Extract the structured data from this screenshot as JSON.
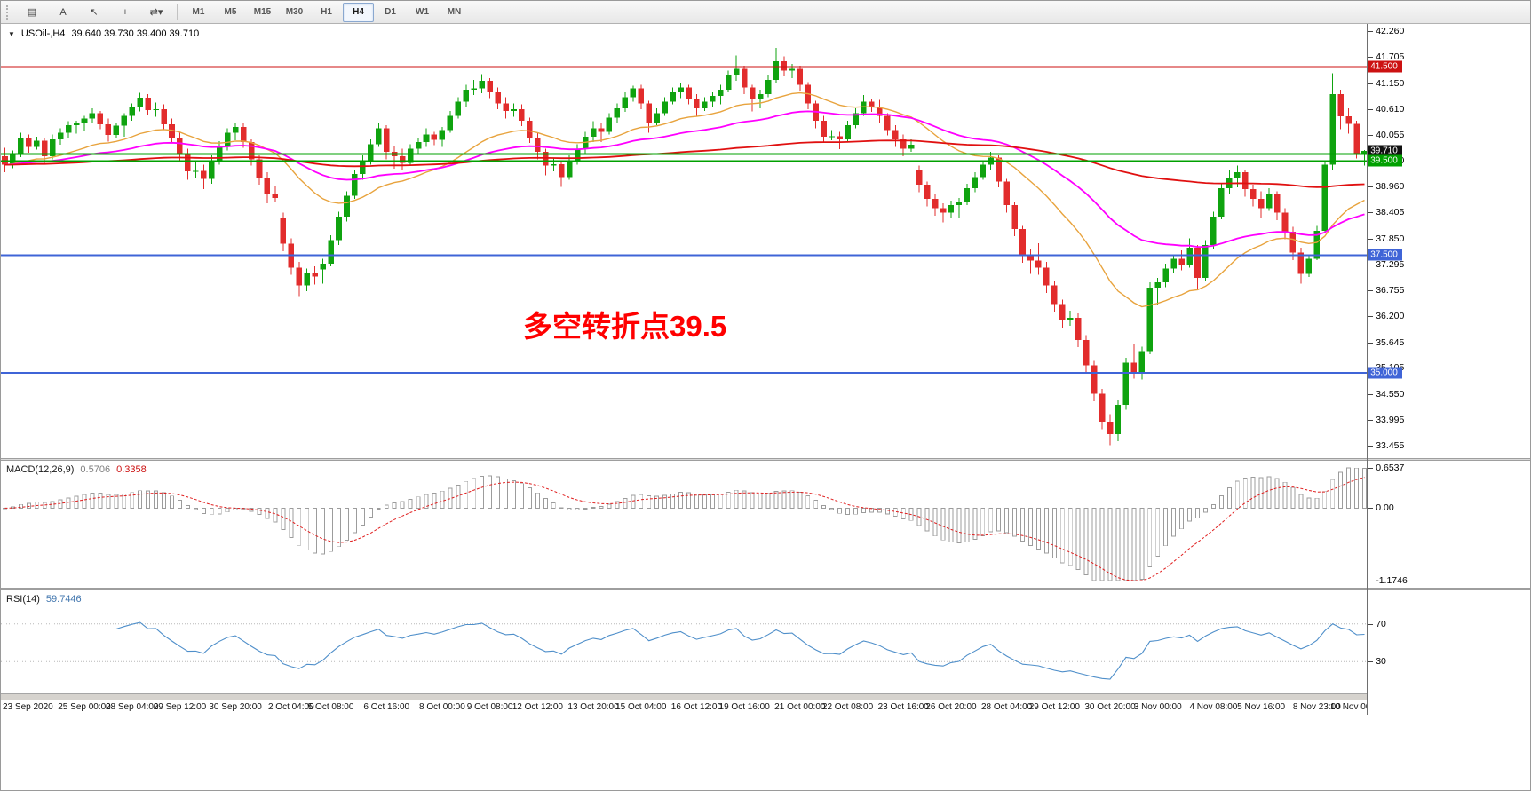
{
  "toolbar": {
    "tools": [
      {
        "name": "charts-grid-icon",
        "glyph": "▤"
      },
      {
        "name": "text-annotation-icon",
        "glyph": "A"
      },
      {
        "name": "cursor-pointer-icon",
        "glyph": "↖"
      },
      {
        "name": "crosshair-icon",
        "glyph": "+"
      },
      {
        "name": "timeframe-cycle-icon",
        "glyph": "⇄▾"
      }
    ],
    "timeframes": [
      "M1",
      "M5",
      "M15",
      "M30",
      "H1",
      "H4",
      "D1",
      "W1",
      "MN"
    ],
    "active_timeframe": "H4"
  },
  "chart": {
    "header": {
      "collapse_glyph": "▼",
      "symbol": "USOil-,H4",
      "ohlc": "39.640 39.730 39.400 39.710"
    }
  },
  "annotation": {
    "text": "多空转折点39.5",
    "color": "#ff0000"
  },
  "macd": {
    "header": {
      "label": "MACD(12,26,9)",
      "value_main": "0.5706",
      "value_signal": "0.3358"
    }
  },
  "rsi": {
    "header": {
      "label": "RSI(14)",
      "value": "59.7446"
    }
  },
  "chart_data": {
    "type": "candlestick",
    "symbol": "USOil",
    "timeframe": "H4",
    "price_range": [
      33.455,
      42.26
    ],
    "price_axis_ticks": [
      "42.260",
      "41.705",
      "41.150",
      "40.610",
      "40.055",
      "39.500",
      "38.960",
      "38.405",
      "37.850",
      "37.295",
      "36.755",
      "36.200",
      "35.645",
      "35.105",
      "34.550",
      "33.995",
      "33.455"
    ],
    "hlines": [
      {
        "price": 41.5,
        "color": "#cc1111",
        "width": 2
      },
      {
        "price": 39.65,
        "color": "#00a000",
        "width": 2
      },
      {
        "price": 39.5,
        "color": "#00a000",
        "width": 2
      },
      {
        "price": 37.5,
        "color": "#3f64d7",
        "width": 2
      },
      {
        "price": 35.0,
        "color": "#3f64d7",
        "width": 2
      }
    ],
    "badges": [
      {
        "price": 41.5,
        "label": "41.500",
        "color": "#cc1111"
      },
      {
        "price": 39.71,
        "label": "39.710",
        "color": "#111111"
      },
      {
        "price": 39.5,
        "label": "39.500",
        "color": "#00a000"
      },
      {
        "price": 37.5,
        "label": "37.500",
        "color": "#3f64d7"
      },
      {
        "price": 35.0,
        "label": "35.000",
        "color": "#3f64d7"
      }
    ],
    "moving_averages": [
      {
        "period": 24,
        "color": "#e8a33d",
        "width": 1.4
      },
      {
        "period": 52,
        "color": "#ff00ff",
        "width": 1.8
      },
      {
        "period": 200,
        "color": "#e01010",
        "width": 1.8
      }
    ],
    "macd": {
      "fast": 12,
      "slow": 26,
      "signal": 9,
      "range": [
        -1.1746,
        0.6537
      ],
      "axis_labels": [
        "0.6537",
        "0.00",
        "-1.1746"
      ]
    },
    "rsi": {
      "period": 14,
      "levels": [
        70,
        30
      ],
      "axis_labels": [
        "70",
        "30"
      ]
    },
    "x_tick_labels": [
      [
        0,
        "23 Sep 2020"
      ],
      [
        10,
        "25 Sep 00:00"
      ],
      [
        16,
        "28 Sep 04:00"
      ],
      [
        22,
        "29 Sep 12:00"
      ],
      [
        29,
        "30 Sep 20:00"
      ],
      [
        36,
        "2 Oct 04:00"
      ],
      [
        41,
        "5 Oct 08:00"
      ],
      [
        48,
        "6 Oct 16:00"
      ],
      [
        55,
        "8 Oct 00:00"
      ],
      [
        61,
        "9 Oct 08:00"
      ],
      [
        67,
        "12 Oct 12:00"
      ],
      [
        74,
        "13 Oct 20:00"
      ],
      [
        80,
        "15 Oct 04:00"
      ],
      [
        87,
        "16 Oct 12:00"
      ],
      [
        93,
        "19 Oct 16:00"
      ],
      [
        100,
        "21 Oct 00:00"
      ],
      [
        106,
        "22 Oct 08:00"
      ],
      [
        113,
        "23 Oct 16:00"
      ],
      [
        119,
        "26 Oct 20:00"
      ],
      [
        126,
        "28 Oct 04:00"
      ],
      [
        132,
        "29 Oct 12:00"
      ],
      [
        139,
        "30 Oct 20:00"
      ],
      [
        145,
        "3 Nov 00:00"
      ],
      [
        152,
        "4 Nov 08:00"
      ],
      [
        158,
        "5 Nov 16:00"
      ],
      [
        165,
        "8 Nov 23:00"
      ],
      [
        170,
        "10 Nov 00:00"
      ]
    ],
    "candles_ohlc": [
      [
        39.6,
        39.78,
        39.26,
        39.42
      ],
      [
        39.42,
        39.72,
        39.35,
        39.65
      ],
      [
        39.65,
        40.1,
        39.58,
        40.0
      ],
      [
        40.0,
        40.06,
        39.68,
        39.8
      ],
      [
        39.8,
        40.02,
        39.74,
        39.93
      ],
      [
        39.93,
        40.0,
        39.45,
        39.6
      ],
      [
        39.6,
        40.06,
        39.54,
        39.96
      ],
      [
        39.96,
        40.2,
        39.85,
        40.1
      ],
      [
        40.1,
        40.35,
        40.0,
        40.26
      ],
      [
        40.26,
        40.36,
        40.08,
        40.31
      ],
      [
        40.31,
        40.46,
        40.14,
        40.4
      ],
      [
        40.4,
        40.62,
        40.3,
        40.52
      ],
      [
        40.52,
        40.56,
        40.18,
        40.28
      ],
      [
        40.28,
        40.4,
        39.91,
        40.05
      ],
      [
        40.05,
        40.3,
        39.98,
        40.25
      ],
      [
        40.25,
        40.52,
        40.02,
        40.46
      ],
      [
        40.46,
        40.72,
        40.36,
        40.66
      ],
      [
        40.66,
        40.95,
        40.55,
        40.85
      ],
      [
        40.85,
        40.92,
        40.48,
        40.58
      ],
      [
        40.58,
        40.74,
        40.44,
        40.6
      ],
      [
        40.6,
        40.7,
        40.18,
        40.28
      ],
      [
        40.28,
        40.4,
        39.88,
        39.98
      ],
      [
        39.98,
        40.1,
        39.52,
        39.64
      ],
      [
        39.64,
        39.76,
        39.1,
        39.28
      ],
      [
        39.28,
        39.5,
        39.14,
        39.29
      ],
      [
        39.29,
        39.42,
        38.9,
        39.12
      ],
      [
        39.12,
        39.62,
        39.02,
        39.52
      ],
      [
        39.52,
        39.92,
        39.42,
        39.82
      ],
      [
        39.82,
        40.2,
        39.72,
        40.1
      ],
      [
        40.1,
        40.31,
        39.94,
        40.22
      ],
      [
        40.22,
        40.3,
        39.78,
        39.9
      ],
      [
        39.9,
        39.96,
        39.4,
        39.54
      ],
      [
        39.54,
        39.62,
        39.0,
        39.14
      ],
      [
        39.14,
        39.26,
        38.6,
        38.8
      ],
      [
        38.8,
        38.96,
        38.64,
        38.72
      ],
      [
        38.3,
        38.4,
        37.58,
        37.74
      ],
      [
        37.74,
        37.86,
        37.08,
        37.24
      ],
      [
        37.24,
        37.36,
        36.63,
        36.86
      ],
      [
        36.86,
        37.22,
        36.74,
        37.12
      ],
      [
        37.12,
        37.26,
        36.88,
        37.05
      ],
      [
        37.2,
        37.42,
        36.9,
        37.32
      ],
      [
        37.32,
        37.92,
        37.26,
        37.82
      ],
      [
        37.82,
        38.42,
        37.72,
        38.32
      ],
      [
        38.32,
        38.86,
        38.22,
        38.76
      ],
      [
        38.76,
        39.3,
        38.7,
        39.22
      ],
      [
        39.22,
        39.62,
        39.1,
        39.52
      ],
      [
        39.52,
        39.96,
        39.42,
        39.86
      ],
      [
        39.86,
        40.3,
        39.8,
        40.2
      ],
      [
        40.2,
        40.26,
        39.54,
        39.7
      ],
      [
        39.7,
        39.82,
        39.34,
        39.6
      ],
      [
        39.6,
        39.76,
        39.3,
        39.46
      ],
      [
        39.46,
        39.86,
        39.4,
        39.76
      ],
      [
        39.76,
        40.0,
        39.64,
        39.9
      ],
      [
        39.9,
        40.2,
        39.8,
        40.06
      ],
      [
        40.06,
        40.12,
        39.84,
        39.95
      ],
      [
        39.95,
        40.22,
        39.8,
        40.16
      ],
      [
        40.16,
        40.56,
        40.1,
        40.46
      ],
      [
        40.46,
        40.86,
        40.4,
        40.76
      ],
      [
        40.76,
        41.12,
        40.66,
        41.02
      ],
      [
        41.02,
        41.22,
        40.9,
        41.04
      ],
      [
        41.04,
        41.35,
        40.94,
        41.2
      ],
      [
        41.2,
        41.26,
        40.84,
        40.96
      ],
      [
        40.96,
        41.06,
        40.6,
        40.72
      ],
      [
        40.72,
        40.86,
        40.4,
        40.56
      ],
      [
        40.56,
        40.72,
        40.44,
        40.6
      ],
      [
        40.6,
        40.7,
        40.24,
        40.36
      ],
      [
        40.36,
        40.42,
        39.88,
        40.0
      ],
      [
        40.0,
        40.1,
        39.54,
        39.7
      ],
      [
        39.7,
        39.76,
        39.2,
        39.4
      ],
      [
        39.4,
        39.56,
        39.28,
        39.43
      ],
      [
        39.43,
        39.52,
        38.95,
        39.16
      ],
      [
        39.16,
        39.62,
        39.1,
        39.52
      ],
      [
        39.52,
        39.86,
        39.42,
        39.76
      ],
      [
        39.76,
        40.12,
        39.66,
        40.02
      ],
      [
        40.02,
        40.35,
        39.9,
        40.2
      ],
      [
        40.2,
        40.32,
        39.9,
        40.12
      ],
      [
        40.12,
        40.52,
        40.06,
        40.42
      ],
      [
        40.42,
        40.72,
        40.32,
        40.62
      ],
      [
        40.62,
        40.96,
        40.54,
        40.86
      ],
      [
        40.86,
        41.1,
        40.76,
        41.04
      ],
      [
        41.04,
        41.12,
        40.6,
        40.72
      ],
      [
        40.72,
        40.78,
        40.1,
        40.32
      ],
      [
        40.32,
        40.62,
        40.26,
        40.52
      ],
      [
        40.52,
        40.86,
        40.46,
        40.76
      ],
      [
        40.76,
        41.06,
        40.7,
        40.96
      ],
      [
        40.96,
        41.15,
        40.84,
        41.06
      ],
      [
        41.06,
        41.12,
        40.7,
        40.82
      ],
      [
        40.82,
        40.92,
        40.45,
        40.62
      ],
      [
        40.62,
        40.86,
        40.56,
        40.76
      ],
      [
        40.76,
        40.96,
        40.66,
        40.88
      ],
      [
        40.88,
        41.12,
        40.7,
        41.02
      ],
      [
        41.02,
        41.42,
        40.96,
        41.32
      ],
      [
        41.32,
        41.74,
        41.2,
        41.46
      ],
      [
        41.46,
        41.52,
        40.92,
        41.06
      ],
      [
        41.06,
        41.12,
        40.55,
        40.83
      ],
      [
        40.83,
        41.02,
        40.62,
        40.92
      ],
      [
        40.92,
        41.32,
        40.86,
        41.22
      ],
      [
        41.22,
        41.9,
        41.16,
        41.62
      ],
      [
        41.62,
        41.72,
        41.3,
        41.42
      ],
      [
        41.42,
        41.56,
        41.26,
        41.46
      ],
      [
        41.46,
        41.52,
        41.0,
        41.12
      ],
      [
        41.12,
        41.18,
        40.6,
        40.72
      ],
      [
        40.72,
        40.78,
        40.2,
        40.36
      ],
      [
        40.36,
        40.46,
        39.9,
        40.02
      ],
      [
        40.02,
        40.16,
        39.94,
        40.03
      ],
      [
        40.03,
        40.12,
        39.75,
        39.96
      ],
      [
        39.96,
        40.36,
        39.9,
        40.26
      ],
      [
        40.26,
        40.62,
        40.2,
        40.52
      ],
      [
        40.52,
        40.9,
        40.46,
        40.76
      ],
      [
        40.76,
        40.82,
        40.54,
        40.64
      ],
      [
        40.64,
        40.8,
        40.3,
        40.46
      ],
      [
        40.46,
        40.52,
        40.04,
        40.16
      ],
      [
        40.16,
        40.26,
        39.8,
        39.96
      ],
      [
        39.96,
        40.06,
        39.6,
        39.76
      ],
      [
        39.76,
        39.96,
        39.7,
        39.85
      ],
      [
        39.3,
        39.4,
        38.84,
        39.0
      ],
      [
        39.0,
        39.06,
        38.54,
        38.7
      ],
      [
        38.7,
        38.8,
        38.34,
        38.5
      ],
      [
        38.5,
        38.6,
        38.2,
        38.4
      ],
      [
        38.4,
        38.66,
        38.3,
        38.56
      ],
      [
        38.56,
        38.72,
        38.3,
        38.62
      ],
      [
        38.62,
        39.02,
        38.56,
        38.92
      ],
      [
        38.92,
        39.26,
        38.84,
        39.16
      ],
      [
        39.16,
        39.52,
        39.1,
        39.42
      ],
      [
        39.42,
        39.7,
        39.32,
        39.57
      ],
      [
        39.57,
        39.62,
        38.94,
        39.06
      ],
      [
        39.06,
        39.12,
        38.4,
        38.56
      ],
      [
        38.56,
        38.62,
        37.9,
        38.06
      ],
      [
        38.06,
        38.12,
        37.34,
        37.5
      ],
      [
        37.5,
        37.62,
        37.1,
        37.39
      ],
      [
        37.39,
        37.75,
        37.08,
        37.24
      ],
      [
        37.24,
        37.36,
        36.7,
        36.86
      ],
      [
        36.86,
        36.96,
        36.3,
        36.46
      ],
      [
        36.46,
        36.56,
        35.95,
        36.12
      ],
      [
        36.12,
        36.32,
        36.0,
        36.17
      ],
      [
        36.17,
        36.26,
        35.55,
        35.7
      ],
      [
        35.7,
        35.8,
        35.0,
        35.16
      ],
      [
        35.16,
        35.26,
        34.4,
        34.56
      ],
      [
        34.56,
        34.66,
        33.8,
        33.96
      ],
      [
        33.96,
        34.12,
        33.46,
        33.7
      ],
      [
        33.7,
        34.42,
        33.55,
        34.32
      ],
      [
        34.32,
        35.32,
        34.22,
        35.22
      ],
      [
        35.22,
        35.62,
        34.88,
        35.02
      ],
      [
        35.02,
        35.56,
        34.86,
        35.46
      ],
      [
        35.46,
        36.92,
        35.4,
        36.81
      ],
      [
        36.81,
        37.02,
        36.45,
        36.92
      ],
      [
        36.92,
        37.32,
        36.82,
        37.22
      ],
      [
        37.22,
        37.52,
        37.12,
        37.42
      ],
      [
        37.42,
        37.6,
        37.18,
        37.3
      ],
      [
        37.3,
        37.86,
        37.24,
        37.66
      ],
      [
        37.66,
        37.72,
        36.75,
        37.02
      ],
      [
        37.02,
        37.82,
        36.96,
        37.72
      ],
      [
        37.72,
        38.42,
        37.62,
        38.32
      ],
      [
        38.32,
        39.02,
        38.26,
        38.92
      ],
      [
        38.92,
        39.3,
        38.8,
        39.15
      ],
      [
        39.15,
        39.4,
        38.94,
        39.26
      ],
      [
        39.26,
        39.32,
        38.74,
        38.9
      ],
      [
        38.9,
        39.0,
        38.54,
        38.7
      ],
      [
        38.7,
        38.86,
        38.3,
        38.5
      ],
      [
        38.5,
        38.92,
        38.44,
        38.79
      ],
      [
        38.79,
        38.86,
        38.24,
        38.4
      ],
      [
        38.4,
        38.5,
        37.84,
        38.0
      ],
      [
        38.0,
        38.1,
        37.4,
        37.56
      ],
      [
        37.56,
        37.66,
        36.9,
        37.1
      ],
      [
        37.1,
        37.52,
        37.04,
        37.42
      ],
      [
        37.42,
        38.12,
        37.4,
        38.02
      ],
      [
        38.02,
        39.52,
        37.96,
        39.42
      ],
      [
        39.42,
        41.36,
        39.32,
        40.92
      ],
      [
        40.92,
        41.02,
        40.18,
        40.45
      ],
      [
        40.45,
        40.62,
        40.08,
        40.29
      ],
      [
        40.29,
        40.36,
        39.55,
        39.64
      ],
      [
        39.64,
        39.73,
        39.4,
        39.71
      ]
    ]
  }
}
